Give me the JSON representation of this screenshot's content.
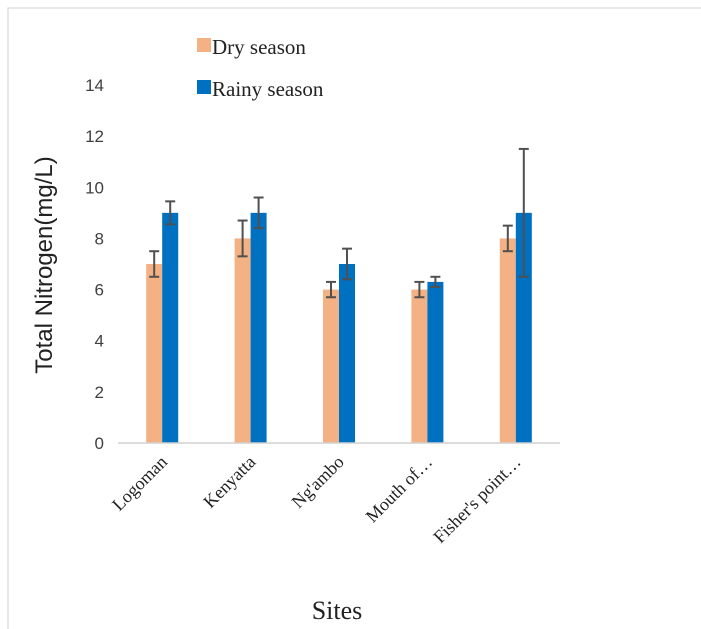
{
  "chart_data": {
    "type": "bar",
    "categories": [
      "Logoman",
      "Kenyatta",
      "Ng'ambo",
      "Mouth of…",
      "Fisher's point…"
    ],
    "series": [
      {
        "name": "Dry season",
        "color": "#f4b183",
        "values": [
          7.0,
          8.0,
          6.0,
          6.0,
          8.0
        ],
        "errors": [
          0.5,
          0.7,
          0.3,
          0.3,
          0.5
        ]
      },
      {
        "name": "Rainy season",
        "color": "#0070c0",
        "values": [
          9.0,
          9.0,
          7.0,
          6.3,
          9.0
        ],
        "errors": [
          0.45,
          0.6,
          0.6,
          0.2,
          2.5
        ]
      }
    ],
    "xlabel": "Sites",
    "ylabel": "Total Nitrogen(mg/L)",
    "ylim": [
      0,
      14
    ],
    "yticks": [
      0,
      2,
      4,
      6,
      8,
      10,
      12,
      14
    ],
    "grid": false,
    "legend_position": "top-left"
  }
}
